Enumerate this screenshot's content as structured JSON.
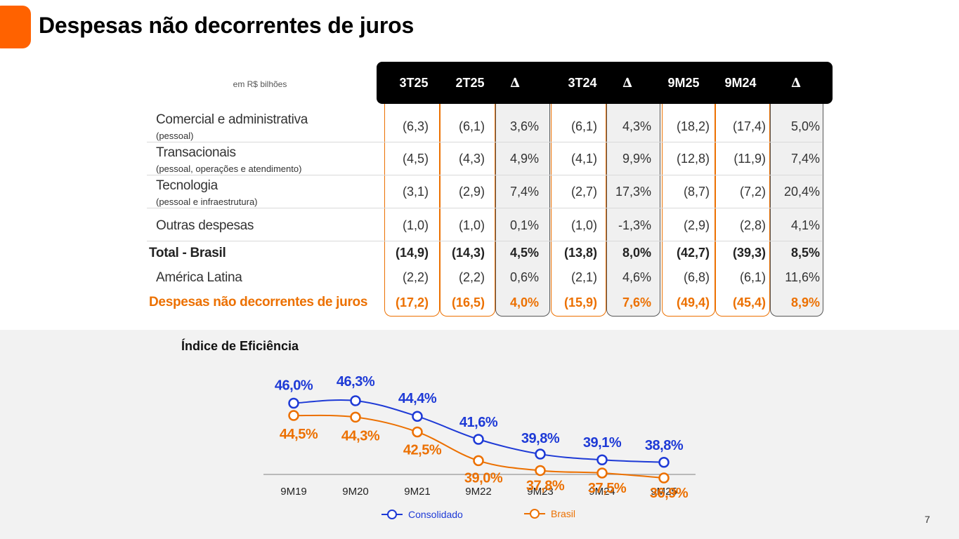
{
  "title": "Despesas não decorrentes de juros",
  "page_number": "7",
  "table": {
    "unit_label": "em R$ bilhões",
    "columns": [
      "3T25",
      "2T25",
      "∆",
      "3T24",
      "∆",
      "9M25",
      "9M24",
      "∆"
    ],
    "rows": [
      {
        "label": "Comercial e administrativa",
        "sub": "(pessoal)",
        "style": "normal",
        "values": [
          "(6,3)",
          "(6,1)",
          "3,6%",
          "(6,1)",
          "4,3%",
          "(18,2)",
          "(17,4)",
          "5,0%"
        ]
      },
      {
        "label": "Transacionais",
        "sub": "(pessoal, operações e atendimento)",
        "style": "normal",
        "values": [
          "(4,5)",
          "(4,3)",
          "4,9%",
          "(4,1)",
          "9,9%",
          "(12,8)",
          "(11,9)",
          "7,4%"
        ]
      },
      {
        "label": "Tecnologia",
        "sub": "(pessoal e infraestrutura)",
        "style": "normal",
        "values": [
          "(3,1)",
          "(2,9)",
          "7,4%",
          "(2,7)",
          "17,3%",
          "(8,7)",
          "(7,2)",
          "20,4%"
        ]
      },
      {
        "label": "Outras despesas",
        "sub": "",
        "style": "normal",
        "values": [
          "(1,0)",
          "(1,0)",
          "0,1%",
          "(1,0)",
          "-1,3%",
          "(2,9)",
          "(2,8)",
          "4,1%"
        ]
      },
      {
        "label": "Total - Brasil",
        "sub": "",
        "style": "bold",
        "values": [
          "(14,9)",
          "(14,3)",
          "4,5%",
          "(13,8)",
          "8,0%",
          "(42,7)",
          "(39,3)",
          "8,5%"
        ]
      },
      {
        "label": "América Latina",
        "sub": "",
        "style": "normal",
        "values": [
          "(2,2)",
          "(2,2)",
          "0,6%",
          "(2,1)",
          "4,6%",
          "(6,8)",
          "(6,1)",
          "11,6%"
        ]
      },
      {
        "label": "Despesas não decorrentes de juros",
        "sub": "",
        "style": "orange",
        "values": [
          "(17,2)",
          "(16,5)",
          "4,0%",
          "(15,9)",
          "7,6%",
          "(49,4)",
          "(45,4)",
          "8,9%"
        ]
      }
    ]
  },
  "chart_data": {
    "type": "line",
    "title": "Índice de Eficiência",
    "categories": [
      "9M19",
      "9M20",
      "9M21",
      "9M22",
      "9M23",
      "9M24",
      "9M25"
    ],
    "series": [
      {
        "name": "Consolidado",
        "color": "#1e3ad6",
        "values": [
          46.0,
          46.3,
          44.4,
          41.6,
          39.8,
          39.1,
          38.8
        ],
        "labels": [
          "46,0%",
          "46,3%",
          "44,4%",
          "41,6%",
          "39,8%",
          "39,1%",
          "38,8%"
        ]
      },
      {
        "name": "Brasil",
        "color": "#ec7000",
        "values": [
          44.5,
          44.3,
          42.5,
          39.0,
          37.8,
          37.5,
          36.9
        ],
        "labels": [
          "44,5%",
          "44,3%",
          "42,5%",
          "39,0%",
          "37,8%",
          "37,5%",
          "36,9%"
        ]
      }
    ],
    "xlabel": "",
    "ylabel": "",
    "legend": "bottom-center"
  }
}
